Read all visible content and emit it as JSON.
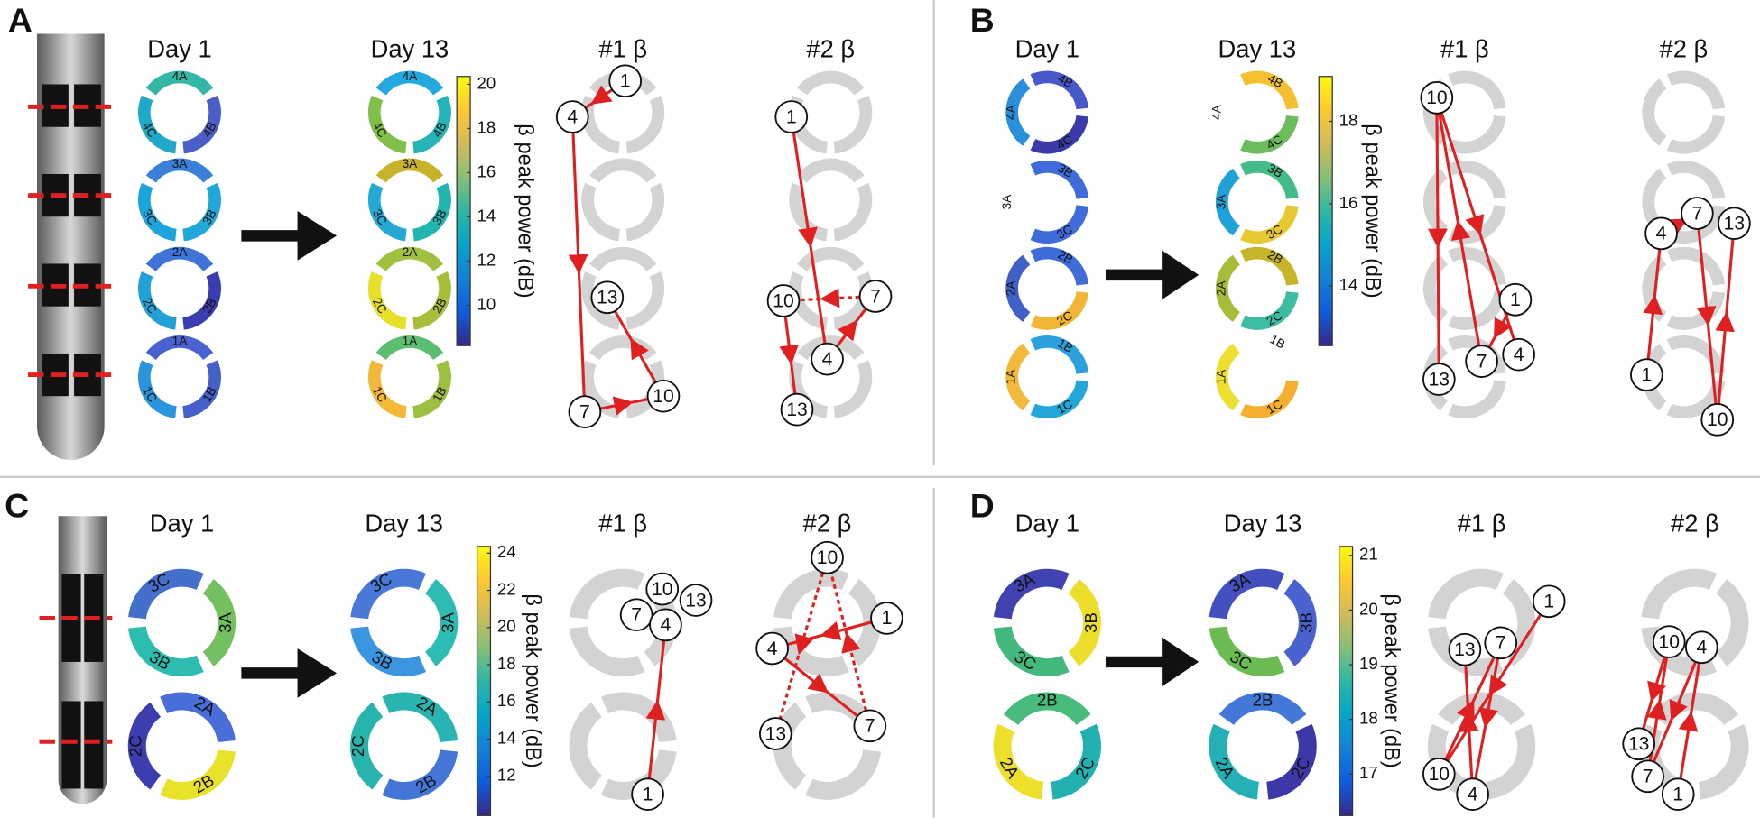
{
  "panels": [
    {
      "letter": "A",
      "day1_title": "Day 1",
      "day13_title": "Day 13",
      "traj1_title": "#1 β",
      "traj2_title": "#2 β",
      "colorbar": {
        "label": "β peak power (dB)",
        "ticks": [
          20,
          18,
          16,
          14,
          12,
          10
        ]
      },
      "day1_rings": [
        [
          {
            "label": "4A",
            "color": "#35b7a8"
          },
          {
            "label": "4B",
            "color": "#4a5ec8"
          },
          {
            "label": "4C",
            "color": "#1fa8c8"
          }
        ],
        [
          {
            "label": "3A",
            "color": "#3a7fd8"
          },
          {
            "label": "3B",
            "color": "#20a8d8"
          },
          {
            "label": "3C",
            "color": "#1da5db"
          }
        ],
        [
          {
            "label": "2A",
            "color": "#3e74d8"
          },
          {
            "label": "2B",
            "color": "#3a3db0"
          },
          {
            "label": "2C",
            "color": "#24a0d8"
          }
        ],
        [
          {
            "label": "1A",
            "color": "#4a62d0"
          },
          {
            "label": "1B",
            "color": "#4560c8"
          },
          {
            "label": "1C",
            "color": "#2a95dc"
          }
        ]
      ],
      "day13_rings": [
        [
          {
            "label": "4A",
            "color": "#23a8e0"
          },
          {
            "label": "4B",
            "color": "#25b5b8"
          },
          {
            "label": "4C",
            "color": "#7fbf4a"
          }
        ],
        [
          {
            "label": "3A",
            "color": "#c8b22a"
          },
          {
            "label": "3B",
            "color": "#20b5b0"
          },
          {
            "label": "3C",
            "color": "#24a8d4"
          }
        ],
        [
          {
            "label": "2A",
            "color": "#a0c040"
          },
          {
            "label": "2B",
            "color": "#a8be3a"
          },
          {
            "label": "2C",
            "color": "#e8e028"
          }
        ],
        [
          {
            "label": "1A",
            "color": "#5cbe70"
          },
          {
            "label": "1B",
            "color": "#9cc040"
          },
          {
            "label": "1C",
            "color": "#f2b838"
          }
        ]
      ],
      "traj1_nodes": [
        "1",
        "4",
        "13",
        "7",
        "10"
      ],
      "traj2_nodes": [
        "1",
        "10",
        "7",
        "4",
        "13"
      ]
    },
    {
      "letter": "B",
      "day1_title": "Day 1",
      "day13_title": "Day 13",
      "traj1_title": "#1 β",
      "traj2_title": "#2 β",
      "colorbar": {
        "label": "β peak power (dB)",
        "ticks": [
          18,
          16,
          14
        ]
      },
      "day1_rings": [
        [
          {
            "label": "4A",
            "color": "#2a90dc"
          },
          {
            "label": "4B",
            "color": "#4858c8"
          },
          {
            "label": "4C",
            "color": "#3a3ba8"
          }
        ],
        [
          {
            "label": "3A",
            "color": null
          },
          {
            "label": "3B",
            "color": "#3f6cd8"
          },
          {
            "label": "3C",
            "color": "#3f6cd8"
          }
        ],
        [
          {
            "label": "2A",
            "color": "#4060c8"
          },
          {
            "label": "2B",
            "color": "#3f6cd8"
          },
          {
            "label": "2C",
            "color": "#f2b636"
          }
        ],
        [
          {
            "label": "1A",
            "color": "#f4b83a"
          },
          {
            "label": "1B",
            "color": "#2aa0dc"
          },
          {
            "label": "1C",
            "color": "#22a8d8"
          }
        ]
      ],
      "day13_rings": [
        [
          {
            "label": "4A",
            "color": null
          },
          {
            "label": "4B",
            "color": "#f5c030"
          },
          {
            "label": "4C",
            "color": "#6cbc5c"
          }
        ],
        [
          {
            "label": "3A",
            "color": "#1ea2d8"
          },
          {
            "label": "3B",
            "color": "#44bc88"
          },
          {
            "label": "3C",
            "color": "#e6c830"
          }
        ],
        [
          {
            "label": "2A",
            "color": "#a8bc3a"
          },
          {
            "label": "2B",
            "color": "#c8b428"
          },
          {
            "label": "2C",
            "color": "#3cbca0"
          }
        ],
        [
          {
            "label": "1A",
            "color": "#eee030"
          },
          {
            "label": "1B",
            "color": null
          },
          {
            "label": "1C",
            "color": "#f5b02e"
          }
        ]
      ],
      "traj1_nodes": [
        "10",
        "1",
        "7",
        "4",
        "13"
      ],
      "traj2_nodes": [
        "7",
        "4",
        "13",
        "1",
        "10"
      ]
    },
    {
      "letter": "C",
      "day1_title": "Day 1",
      "day13_title": "Day 13",
      "traj1_title": "#1 β",
      "traj2_title": "#2 β",
      "colorbar": {
        "label": "β peak power (dB)",
        "ticks": [
          24,
          22,
          20,
          18,
          16,
          14,
          12
        ]
      },
      "day1_rings": [
        [
          {
            "label": "3A",
            "color": "#74c060"
          },
          {
            "label": "3B",
            "color": "#2cbcb0"
          },
          {
            "label": "3C",
            "color": "#4470cc"
          }
        ],
        [
          {
            "label": "2A",
            "color": "#4a6ed8"
          },
          {
            "label": "2B",
            "color": "#e8e228"
          },
          {
            "label": "2C",
            "color": "#3c3eb0"
          }
        ]
      ],
      "day13_rings": [
        [
          {
            "label": "3A",
            "color": "#2cbcb4"
          },
          {
            "label": "3B",
            "color": "#3a96e0"
          },
          {
            "label": "3C",
            "color": "#4a78d8"
          }
        ],
        [
          {
            "label": "2A",
            "color": "#28b4b0"
          },
          {
            "label": "2B",
            "color": "#4476d8"
          },
          {
            "label": "2C",
            "color": "#26b4ac"
          }
        ]
      ],
      "traj1_nodes": [
        "10",
        "13",
        "7",
        "4",
        "1"
      ],
      "traj2_nodes": [
        "10",
        "1",
        "4",
        "7",
        "13"
      ]
    },
    {
      "letter": "D",
      "day1_title": "Day 1",
      "day13_title": "Day 13",
      "traj1_title": "#1 β",
      "traj2_title": "#2 β",
      "colorbar": {
        "label": "β peak power (dB)",
        "ticks": [
          21,
          20,
          19,
          18,
          17
        ]
      },
      "day1_rings": [
        [
          {
            "label": "3A",
            "color": "#4042b0"
          },
          {
            "label": "3B",
            "color": "#ecde2a"
          },
          {
            "label": "3C",
            "color": "#42b87c"
          }
        ],
        [
          {
            "label": "2A",
            "color": "#eee02a"
          },
          {
            "label": "2B",
            "color": "#48bc7c"
          },
          {
            "label": "2C",
            "color": "#22b0b0"
          }
        ]
      ],
      "day13_rings": [
        [
          {
            "label": "3A",
            "color": "#4450c0"
          },
          {
            "label": "3B",
            "color": "#4a62d0"
          },
          {
            "label": "3C",
            "color": "#6cbc54"
          }
        ],
        [
          {
            "label": "2A",
            "color": "#24b0b4"
          },
          {
            "label": "2B",
            "color": "#4478d8"
          },
          {
            "label": "2C",
            "color": "#3c38a8"
          }
        ]
      ],
      "traj1_nodes": [
        "1",
        "13",
        "7",
        "10",
        "4"
      ],
      "traj2_nodes": [
        "10",
        "4",
        "13",
        "7",
        "1"
      ]
    }
  ]
}
